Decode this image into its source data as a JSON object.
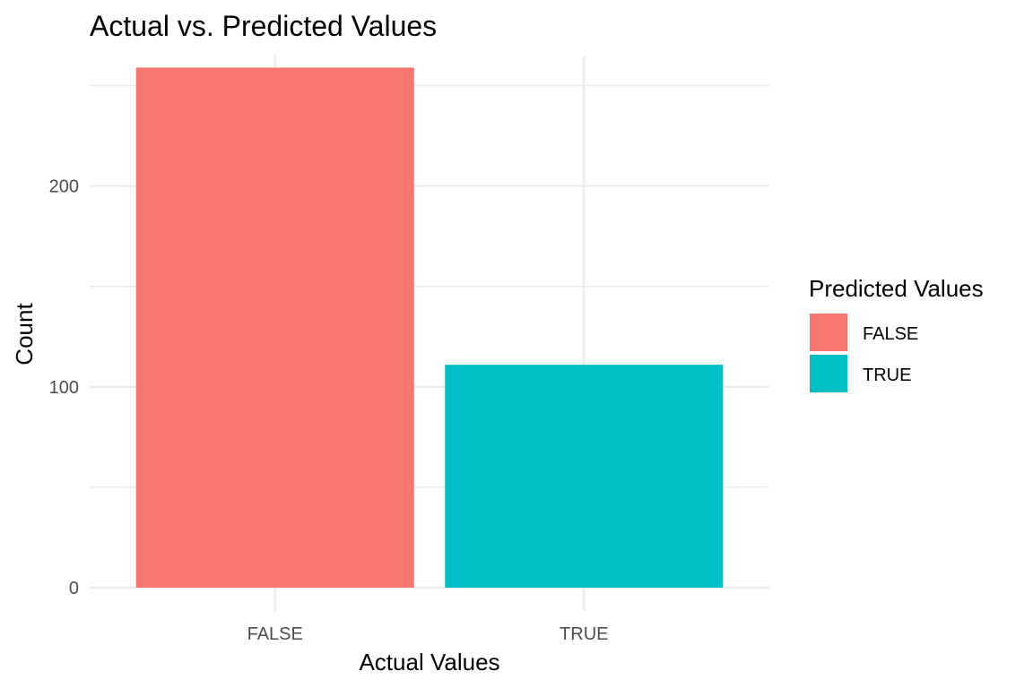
{
  "chart_data": {
    "type": "bar",
    "title": "Actual vs. Predicted Values",
    "xlabel": "Actual Values",
    "ylabel": "Count",
    "categories": [
      "FALSE",
      "TRUE"
    ],
    "values": [
      259,
      111
    ],
    "fill_by": [
      "FALSE",
      "TRUE"
    ],
    "ylim": [
      0,
      265
    ],
    "yticks": [
      0,
      100,
      200
    ],
    "grid": true,
    "legend": {
      "title": "Predicted Values",
      "position": "right",
      "entries": [
        {
          "label": "FALSE",
          "color": "#F8766D"
        },
        {
          "label": "TRUE",
          "color": "#00BFC4"
        }
      ]
    },
    "colors": {
      "FALSE": "#F8766D",
      "TRUE": "#00BFC4"
    }
  }
}
